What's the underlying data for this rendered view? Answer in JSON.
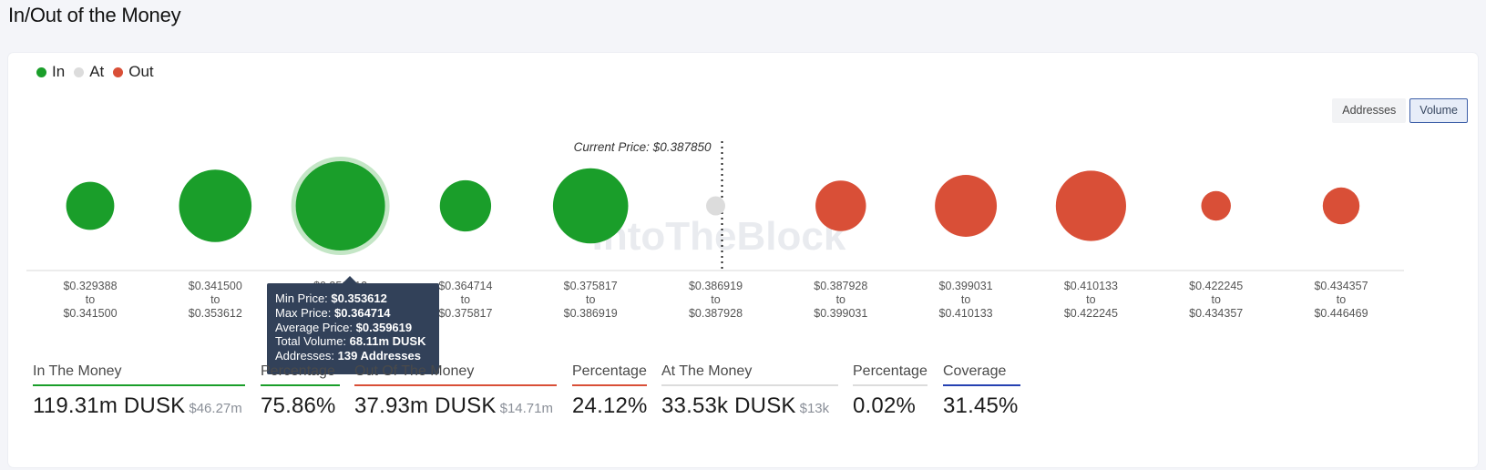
{
  "page_title": "In/Out of the Money",
  "legend": [
    {
      "label": "In",
      "color": "#1a9e2a"
    },
    {
      "label": "At",
      "color": "#dcdcdc"
    },
    {
      "label": "Out",
      "color": "#d94f37"
    }
  ],
  "toggle": {
    "addresses": "Addresses",
    "volume": "Volume",
    "active": "volume"
  },
  "watermark": "IntoTheBlock",
  "chart_data": {
    "type": "bubble",
    "current_price_label": "Current Price: $0.387850",
    "current_price": 0.38785,
    "bins": [
      {
        "from": "$0.329388",
        "to": "$0.341500",
        "status": "in",
        "rel_size": 0.29
      },
      {
        "from": "$0.341500",
        "to": "$0.353612",
        "status": "in",
        "rel_size": 0.66
      },
      {
        "from": "$0.353612",
        "to": "$0.364714",
        "status": "in",
        "rel_size": 1.0
      },
      {
        "from": "$0.364714",
        "to": "$0.375817",
        "status": "in",
        "rel_size": 0.33
      },
      {
        "from": "$0.375817",
        "to": "$0.386919",
        "status": "in",
        "rel_size": 0.71
      },
      {
        "from": "$0.386919",
        "to": "$0.387928",
        "status": "at",
        "rel_size": 0.04
      },
      {
        "from": "$0.387928",
        "to": "$0.399031",
        "status": "out",
        "rel_size": 0.32
      },
      {
        "from": "$0.399031",
        "to": "$0.410133",
        "status": "out",
        "rel_size": 0.48
      },
      {
        "from": "$0.410133",
        "to": "$0.422245",
        "status": "out",
        "rel_size": 0.62
      },
      {
        "from": "$0.422245",
        "to": "$0.434357",
        "status": "out",
        "rel_size": 0.11
      },
      {
        "from": "$0.434357",
        "to": "$0.446469",
        "status": "out",
        "rel_size": 0.17
      }
    ],
    "to_word": "to",
    "highlighted_bin": 2,
    "colors": {
      "in": "#1a9e2a",
      "at": "#dcdcdc",
      "out": "#d94f37",
      "in_halo": "#c4e6c6"
    }
  },
  "tooltip": {
    "min_label": "Min Price:",
    "min_value": "$0.353612",
    "max_label": "Max Price:",
    "max_value": "$0.364714",
    "avg_label": "Average Price:",
    "avg_value": "$0.359619",
    "vol_label": "Total Volume:",
    "vol_value": "68.11m DUSK",
    "addr_label": "Addresses:",
    "addr_value": "139 Addresses"
  },
  "stats": {
    "in_money": {
      "label": "In The Money",
      "value": "119.31m DUSK",
      "sub": "$46.27m",
      "color": "#1a9e2a"
    },
    "in_pct": {
      "label": "Percentage",
      "value": "75.86%",
      "color": "#1a9e2a"
    },
    "out_money": {
      "label": "Out Of The Money",
      "value": "37.93m DUSK",
      "sub": "$14.71m",
      "color": "#d94f37"
    },
    "out_pct": {
      "label": "Percentage",
      "value": "24.12%",
      "color": "#d94f37"
    },
    "at_money": {
      "label": "At The Money",
      "value": "33.53k DUSK",
      "sub": "$13k",
      "color": "#dcdcdc"
    },
    "at_pct": {
      "label": "Percentage",
      "value": "0.02%",
      "color": "#dcdcdc"
    },
    "coverage": {
      "label": "Coverage",
      "value": "31.45%",
      "color": "#2541b2"
    }
  }
}
